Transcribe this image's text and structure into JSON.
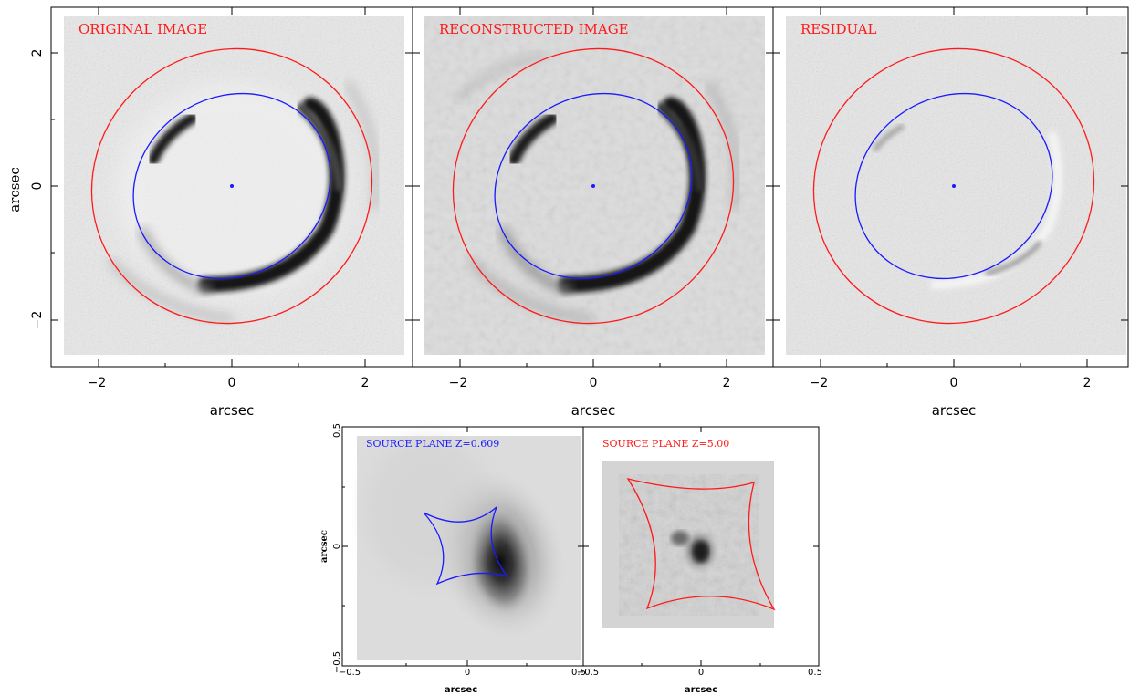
{
  "colors": {
    "outer_critical_curve": "#ff1a1a",
    "inner_critical_curve": "#1a1aff",
    "frame": "#000000",
    "background": "#ffffff",
    "panel_fill_original": "#e8e8e8",
    "panel_fill_reconstructed": "#dcdcdc",
    "panel_fill_residual": "#e6e6e6",
    "arc": "#141414"
  },
  "top_row": {
    "panels": [
      {
        "label": "ORIGINAL IMAGE"
      },
      {
        "label": "RECONSTRUCTED IMAGE"
      },
      {
        "label": "RESIDUAL"
      }
    ],
    "xlabel": "arcsec",
    "ylabel": "arcsec",
    "x_ticks": [
      "−2",
      "0",
      "2"
    ],
    "y_ticks": [
      "2",
      "0",
      "−2"
    ]
  },
  "bottom_row": {
    "panels": [
      {
        "label": "SOURCE PLANE Z=0.609",
        "x_ticks": [
          "−0.5",
          "0",
          "0.5"
        ]
      },
      {
        "label": "SOURCE PLANE Z=5.00",
        "x_ticks": [
          "−0.5",
          "0",
          "0.5"
        ]
      }
    ],
    "xlabel": "arcsec",
    "ylabel": "arcsec",
    "y_ticks": [
      "0.5",
      "0",
      "−0.5"
    ]
  }
}
